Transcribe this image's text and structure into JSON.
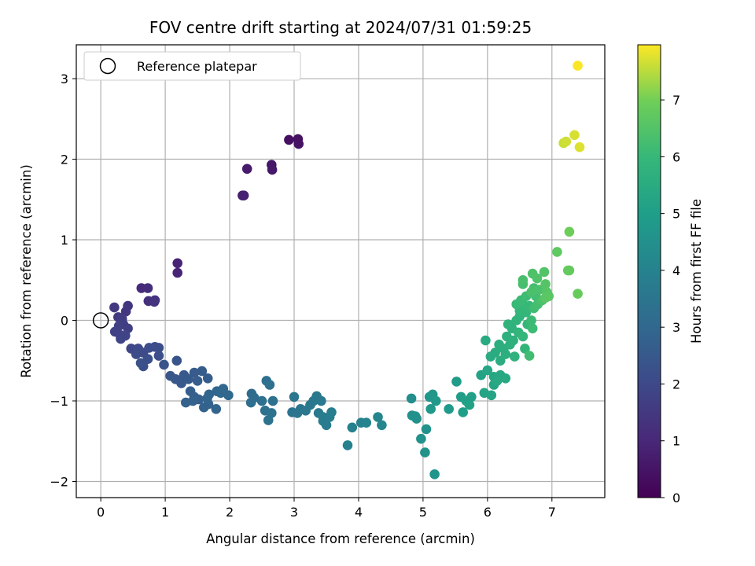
{
  "chart_data": {
    "type": "scatter",
    "title": "FOV centre drift starting at 2024/07/31 01:59:25",
    "xlabel": "Angular distance from reference (arcmin)",
    "ylabel": "Rotation from reference (arcmin)",
    "xlim": [
      -0.38,
      7.82
    ],
    "ylim": [
      -2.2,
      3.42
    ],
    "xticks": [
      0,
      1,
      2,
      3,
      4,
      5,
      6,
      7
    ],
    "yticks": [
      -2,
      -1,
      0,
      1,
      2,
      3
    ],
    "grid": true,
    "colormap": "viridis",
    "colorbar": {
      "label": "Hours from first FF file",
      "range": [
        0,
        7.97
      ],
      "ticks": [
        0,
        1,
        2,
        3,
        4,
        5,
        6,
        7
      ]
    },
    "legend": {
      "position": "top-left",
      "entries": [
        "Reference platepar"
      ]
    },
    "reference_point": {
      "x": 0,
      "y": 0
    },
    "points": [
      [
        2.92,
        2.24,
        0.35
      ],
      [
        3.06,
        2.25,
        0.4
      ],
      [
        3.07,
        2.19,
        0.45
      ],
      [
        2.65,
        1.93,
        0.55
      ],
      [
        2.66,
        1.87,
        0.6
      ],
      [
        2.27,
        1.88,
        0.65
      ],
      [
        2.2,
        1.55,
        0.75
      ],
      [
        2.22,
        1.55,
        0.8
      ],
      [
        1.19,
        0.71,
        0.9
      ],
      [
        1.19,
        0.59,
        0.95
      ],
      [
        0.63,
        0.4,
        1.1
      ],
      [
        0.73,
        0.4,
        1.15
      ],
      [
        0.74,
        0.24,
        1.25
      ],
      [
        0.84,
        0.25,
        1.3
      ],
      [
        0.83,
        0.23,
        1.35
      ],
      [
        0.42,
        0.18,
        1.4
      ],
      [
        0.39,
        0.11,
        1.45
      ],
      [
        0.21,
        0.16,
        1.5
      ],
      [
        0.27,
        0.04,
        1.55
      ],
      [
        0.33,
        0.02,
        1.6
      ],
      [
        0.35,
        -0.05,
        1.65
      ],
      [
        0.42,
        -0.1,
        1.7
      ],
      [
        0.28,
        -0.07,
        1.72
      ],
      [
        0.22,
        -0.14,
        1.75
      ],
      [
        0.3,
        -0.18,
        1.78
      ],
      [
        0.38,
        -0.19,
        1.8
      ],
      [
        0.31,
        -0.23,
        1.85
      ],
      [
        0.47,
        -0.35,
        1.9
      ],
      [
        0.53,
        -0.37,
        1.95
      ],
      [
        0.58,
        -0.35,
        2.0
      ],
      [
        0.66,
        -0.4,
        2.05
      ],
      [
        0.55,
        -0.42,
        2.08
      ],
      [
        0.75,
        -0.34,
        2.1
      ],
      [
        0.84,
        -0.33,
        2.12
      ],
      [
        0.9,
        -0.34,
        2.15
      ],
      [
        0.9,
        -0.44,
        2.18
      ],
      [
        0.73,
        -0.48,
        2.2
      ],
      [
        0.66,
        -0.57,
        2.22
      ],
      [
        0.62,
        -0.53,
        2.25
      ],
      [
        0.98,
        -0.55,
        2.3
      ],
      [
        1.18,
        -0.5,
        2.35
      ],
      [
        1.08,
        -0.69,
        2.4
      ],
      [
        1.16,
        -0.73,
        2.45
      ],
      [
        1.25,
        -0.78,
        2.5
      ],
      [
        1.29,
        -0.68,
        2.52
      ],
      [
        1.36,
        -0.73,
        2.55
      ],
      [
        1.45,
        -0.65,
        2.58
      ],
      [
        1.57,
        -0.63,
        2.6
      ],
      [
        1.5,
        -0.75,
        2.62
      ],
      [
        1.66,
        -0.72,
        2.65
      ],
      [
        1.39,
        -0.88,
        2.68
      ],
      [
        1.45,
        -0.95,
        2.7
      ],
      [
        1.52,
        -0.98,
        2.72
      ],
      [
        1.32,
        -1.02,
        2.75
      ],
      [
        1.43,
        -1.0,
        2.78
      ],
      [
        1.6,
        -1.08,
        2.8
      ],
      [
        1.67,
        -1.04,
        2.82
      ],
      [
        1.79,
        -1.1,
        2.85
      ],
      [
        1.68,
        -0.92,
        2.88
      ],
      [
        1.65,
        -0.97,
        2.9
      ],
      [
        1.8,
        -0.88,
        2.92
      ],
      [
        1.9,
        -0.85,
        2.95
      ],
      [
        1.98,
        -0.93,
        2.98
      ],
      [
        1.86,
        -0.9,
        3.0
      ],
      [
        2.34,
        -0.91,
        3.1
      ],
      [
        2.38,
        -0.96,
        3.15
      ],
      [
        2.33,
        -1.02,
        3.2
      ],
      [
        2.57,
        -0.75,
        3.25
      ],
      [
        2.62,
        -0.8,
        3.28
      ],
      [
        2.5,
        -1.0,
        3.3
      ],
      [
        2.67,
        -1.0,
        3.32
      ],
      [
        2.55,
        -1.12,
        3.35
      ],
      [
        2.65,
        -1.15,
        3.38
      ],
      [
        2.6,
        -1.24,
        3.4
      ],
      [
        2.97,
        -1.14,
        3.45
      ],
      [
        3.0,
        -0.95,
        3.48
      ],
      [
        3.1,
        -1.1,
        3.5
      ],
      [
        3.05,
        -1.15,
        3.52
      ],
      [
        3.25,
        -1.05,
        3.55
      ],
      [
        3.18,
        -1.12,
        3.58
      ],
      [
        3.35,
        -0.94,
        3.6
      ],
      [
        3.3,
        -1.0,
        3.62
      ],
      [
        3.42,
        -1.0,
        3.65
      ],
      [
        3.38,
        -1.15,
        3.68
      ],
      [
        3.45,
        -1.2,
        3.7
      ],
      [
        3.45,
        -1.25,
        3.72
      ],
      [
        3.5,
        -1.3,
        3.75
      ],
      [
        3.55,
        -1.2,
        3.78
      ],
      [
        3.58,
        -1.14,
        3.8
      ],
      [
        3.83,
        -1.55,
        3.9
      ],
      [
        3.9,
        -1.33,
        3.95
      ],
      [
        4.04,
        -1.27,
        4.0
      ],
      [
        4.12,
        -1.27,
        4.05
      ],
      [
        4.3,
        -1.2,
        4.1
      ],
      [
        4.36,
        -1.3,
        4.15
      ],
      [
        4.82,
        -0.97,
        4.4
      ],
      [
        4.88,
        -1.19,
        4.45
      ],
      [
        4.83,
        -1.18,
        4.48
      ],
      [
        4.9,
        -1.22,
        4.5
      ],
      [
        4.97,
        -1.47,
        4.55
      ],
      [
        5.05,
        -1.35,
        4.58
      ],
      [
        5.03,
        -1.64,
        4.6
      ],
      [
        5.18,
        -1.91,
        4.65
      ],
      [
        5.1,
        -0.95,
        4.7
      ],
      [
        5.15,
        -0.92,
        4.72
      ],
      [
        5.2,
        -1.0,
        4.75
      ],
      [
        5.12,
        -1.1,
        4.78
      ],
      [
        5.4,
        -1.1,
        4.85
      ],
      [
        5.52,
        -0.76,
        4.9
      ],
      [
        5.59,
        -0.95,
        4.95
      ],
      [
        5.62,
        -1.14,
        5.0
      ],
      [
        5.67,
        -1.0,
        5.05
      ],
      [
        5.75,
        -0.95,
        5.08
      ],
      [
        5.72,
        -1.05,
        5.1
      ],
      [
        5.9,
        -0.68,
        5.15
      ],
      [
        5.95,
        -0.9,
        5.2
      ],
      [
        6.06,
        -0.93,
        5.22
      ],
      [
        6.1,
        -0.8,
        5.25
      ],
      [
        6.0,
        -0.62,
        5.3
      ],
      [
        6.1,
        -0.7,
        5.32
      ],
      [
        6.2,
        -0.68,
        5.35
      ],
      [
        6.15,
        -0.75,
        5.38
      ],
      [
        6.28,
        -0.72,
        5.4
      ],
      [
        5.97,
        -0.25,
        5.45
      ],
      [
        6.05,
        -0.45,
        5.5
      ],
      [
        6.12,
        -0.4,
        5.52
      ],
      [
        6.2,
        -0.5,
        5.55
      ],
      [
        6.18,
        -0.3,
        5.58
      ],
      [
        6.25,
        -0.35,
        5.6
      ],
      [
        6.28,
        -0.42,
        5.62
      ],
      [
        6.3,
        -0.2,
        5.65
      ],
      [
        6.35,
        -0.3,
        5.68
      ],
      [
        6.4,
        -0.25,
        5.7
      ],
      [
        6.38,
        -0.1,
        5.72
      ],
      [
        6.42,
        -0.45,
        5.75
      ],
      [
        6.32,
        -0.05,
        5.78
      ],
      [
        6.45,
        0.0,
        5.8
      ],
      [
        6.5,
        0.05,
        5.82
      ],
      [
        6.48,
        -0.15,
        5.85
      ],
      [
        6.55,
        -0.2,
        5.88
      ],
      [
        6.58,
        -0.35,
        5.9
      ],
      [
        6.5,
        0.12,
        5.92
      ],
      [
        6.6,
        0.1,
        5.95
      ],
      [
        6.62,
        -0.05,
        5.98
      ],
      [
        6.55,
        0.2,
        6.0
      ],
      [
        6.65,
        0.18,
        6.02
      ],
      [
        6.45,
        0.2,
        6.05
      ],
      [
        6.52,
        0.25,
        6.08
      ],
      [
        6.68,
        0.0,
        6.1
      ],
      [
        6.7,
        -0.1,
        6.12
      ],
      [
        6.6,
        0.3,
        6.15
      ],
      [
        6.72,
        0.15,
        6.18
      ],
      [
        6.65,
        -0.44,
        6.2
      ],
      [
        6.75,
        0.3,
        6.22
      ],
      [
        6.72,
        0.4,
        6.25
      ],
      [
        6.78,
        0.2,
        6.28
      ],
      [
        6.55,
        0.45,
        6.3
      ],
      [
        6.55,
        0.5,
        6.32
      ],
      [
        6.68,
        0.35,
        6.35
      ],
      [
        6.8,
        0.38,
        6.38
      ],
      [
        6.85,
        0.25,
        6.4
      ],
      [
        6.7,
        0.58,
        6.42
      ],
      [
        6.77,
        0.52,
        6.45
      ],
      [
        6.88,
        0.6,
        6.5
      ],
      [
        6.9,
        0.45,
        6.55
      ],
      [
        6.92,
        0.35,
        6.58
      ],
      [
        6.95,
        0.3,
        6.6
      ],
      [
        6.9,
        0.28,
        6.62
      ],
      [
        7.08,
        0.85,
        6.7
      ],
      [
        7.25,
        0.62,
        6.75
      ],
      [
        7.27,
        0.62,
        6.8
      ],
      [
        7.4,
        0.33,
        6.85
      ],
      [
        7.27,
        1.1,
        6.95
      ],
      [
        7.18,
        2.2,
        7.6
      ],
      [
        7.22,
        2.22,
        7.65
      ],
      [
        7.35,
        2.3,
        7.7
      ],
      [
        7.43,
        2.15,
        7.75
      ],
      [
        7.4,
        3.16,
        7.95
      ]
    ]
  }
}
